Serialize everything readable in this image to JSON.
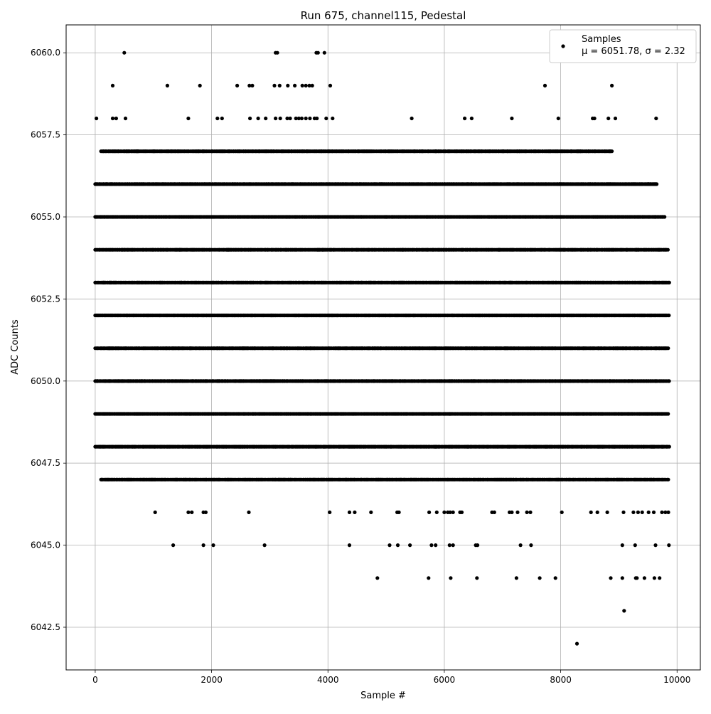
{
  "chart_data": {
    "type": "scatter",
    "title": "Run 675, channel115, Pedestal",
    "xlabel": "Sample #",
    "ylabel": "ADC Counts",
    "xlim": [
      -500,
      10400
    ],
    "ylim": [
      6041.2,
      6060.85
    ],
    "grid": true,
    "legend_placement": "top-right",
    "marker_color": "#000000",
    "x_ticks": [
      0,
      2000,
      4000,
      6000,
      8000,
      10000
    ],
    "x_tick_labels": [
      "0",
      "2000",
      "4000",
      "6000",
      "8000",
      "10000"
    ],
    "y_ticks": [
      6042.5,
      6045.0,
      6047.5,
      6050.0,
      6052.5,
      6055.0,
      6057.5,
      6060.0
    ],
    "y_tick_labels": [
      "6042.5",
      "6045.0",
      "6047.5",
      "6050.0",
      "6052.5",
      "6055.0",
      "6057.5",
      "6060.0"
    ],
    "series": [
      {
        "name": "Samples",
        "annotation": "μ = 6051.78, σ = 2.32",
        "dense_bands": [
          {
            "y": 6054,
            "x_range": [
              0,
              9850
            ]
          },
          {
            "y": 6053,
            "x_range": [
              0,
              9870
            ]
          },
          {
            "y": 6052,
            "x_range": [
              0,
              9870
            ]
          },
          {
            "y": 6051,
            "x_range": [
              0,
              9870
            ]
          },
          {
            "y": 6050,
            "x_range": [
              0,
              9870
            ]
          },
          {
            "y": 6049,
            "x_range": [
              0,
              9870
            ]
          },
          {
            "y": 6055,
            "x_range": [
              0,
              9800
            ]
          },
          {
            "y": 6048,
            "x_range": [
              0,
              9870
            ]
          },
          {
            "y": 6056,
            "x_range": [
              0,
              9650
            ]
          },
          {
            "y": 6047,
            "x_range": [
              100,
              9860
            ]
          },
          {
            "y": 6057,
            "x_range": [
              100,
              8900
            ]
          }
        ],
        "sparse_points": [
          [
            500,
            6060
          ],
          [
            3100,
            6060
          ],
          [
            3130,
            6060
          ],
          [
            3800,
            6060
          ],
          [
            3830,
            6060
          ],
          [
            3940,
            6060
          ],
          [
            300,
            6059
          ],
          [
            1240,
            6059
          ],
          [
            1800,
            6059
          ],
          [
            2440,
            6059
          ],
          [
            2650,
            6059
          ],
          [
            2700,
            6059
          ],
          [
            3080,
            6059
          ],
          [
            3170,
            6059
          ],
          [
            3310,
            6059
          ],
          [
            3430,
            6059
          ],
          [
            3560,
            6059
          ],
          [
            3620,
            6059
          ],
          [
            3680,
            6059
          ],
          [
            3730,
            6059
          ],
          [
            4040,
            6059
          ],
          [
            7730,
            6059
          ],
          [
            8880,
            6059
          ],
          [
            20,
            6058
          ],
          [
            300,
            6058
          ],
          [
            360,
            6058
          ],
          [
            520,
            6058
          ],
          [
            1600,
            6058
          ],
          [
            2100,
            6058
          ],
          [
            2180,
            6058
          ],
          [
            2660,
            6058
          ],
          [
            2800,
            6058
          ],
          [
            2930,
            6058
          ],
          [
            3100,
            6058
          ],
          [
            3180,
            6058
          ],
          [
            3300,
            6058
          ],
          [
            3350,
            6058
          ],
          [
            3450,
            6058
          ],
          [
            3500,
            6058
          ],
          [
            3550,
            6058
          ],
          [
            3620,
            6058
          ],
          [
            3690,
            6058
          ],
          [
            3770,
            6058
          ],
          [
            3810,
            6058
          ],
          [
            3970,
            6058
          ],
          [
            4080,
            6058
          ],
          [
            5440,
            6058
          ],
          [
            6350,
            6058
          ],
          [
            6470,
            6058
          ],
          [
            7160,
            6058
          ],
          [
            7960,
            6058
          ],
          [
            8550,
            6058
          ],
          [
            8580,
            6058
          ],
          [
            8820,
            6058
          ],
          [
            8940,
            6058
          ],
          [
            9640,
            6058
          ],
          [
            1030,
            6046
          ],
          [
            1600,
            6046
          ],
          [
            1660,
            6046
          ],
          [
            1860,
            6046
          ],
          [
            1900,
            6046
          ],
          [
            2640,
            6046
          ],
          [
            4030,
            6046
          ],
          [
            4370,
            6046
          ],
          [
            4460,
            6046
          ],
          [
            4740,
            6046
          ],
          [
            5190,
            6046
          ],
          [
            5220,
            6046
          ],
          [
            5740,
            6046
          ],
          [
            5870,
            6046
          ],
          [
            6000,
            6046
          ],
          [
            6060,
            6046
          ],
          [
            6100,
            6046
          ],
          [
            6150,
            6046
          ],
          [
            6270,
            6046
          ],
          [
            6300,
            6046
          ],
          [
            6820,
            6046
          ],
          [
            6860,
            6046
          ],
          [
            7120,
            6046
          ],
          [
            7160,
            6046
          ],
          [
            7260,
            6046
          ],
          [
            7420,
            6046
          ],
          [
            7480,
            6046
          ],
          [
            8020,
            6046
          ],
          [
            8520,
            6046
          ],
          [
            8630,
            6046
          ],
          [
            8800,
            6046
          ],
          [
            9080,
            6046
          ],
          [
            9250,
            6046
          ],
          [
            9330,
            6046
          ],
          [
            9400,
            6046
          ],
          [
            9510,
            6046
          ],
          [
            9600,
            6046
          ],
          [
            9740,
            6046
          ],
          [
            9800,
            6046
          ],
          [
            9850,
            6046
          ],
          [
            1340,
            6045
          ],
          [
            1860,
            6045
          ],
          [
            2030,
            6045
          ],
          [
            2910,
            6045
          ],
          [
            4370,
            6045
          ],
          [
            5060,
            6045
          ],
          [
            5200,
            6045
          ],
          [
            5410,
            6045
          ],
          [
            5780,
            6045
          ],
          [
            5850,
            6045
          ],
          [
            6090,
            6045
          ],
          [
            6150,
            6045
          ],
          [
            6540,
            6045
          ],
          [
            6570,
            6045
          ],
          [
            7310,
            6045
          ],
          [
            7490,
            6045
          ],
          [
            9060,
            6045
          ],
          [
            9280,
            6045
          ],
          [
            9630,
            6045
          ],
          [
            9860,
            6045
          ],
          [
            4850,
            6044
          ],
          [
            5730,
            6044
          ],
          [
            6110,
            6044
          ],
          [
            6560,
            6044
          ],
          [
            7240,
            6044
          ],
          [
            7640,
            6044
          ],
          [
            7910,
            6044
          ],
          [
            8860,
            6044
          ],
          [
            9060,
            6044
          ],
          [
            9290,
            6044
          ],
          [
            9310,
            6044
          ],
          [
            9440,
            6044
          ],
          [
            9610,
            6044
          ],
          [
            9700,
            6044
          ],
          [
            9090,
            6043
          ],
          [
            8280,
            6042
          ]
        ]
      }
    ]
  }
}
